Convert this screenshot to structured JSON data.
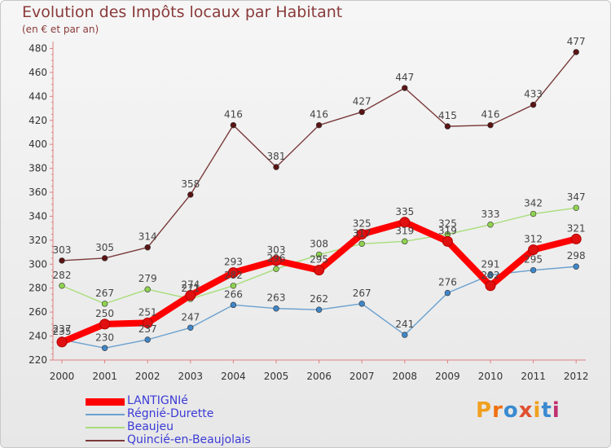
{
  "title": "Evolution des Impôts locaux par Habitant",
  "subtitle": "(en € et par an)",
  "brand": "Proxiti",
  "chart_data": {
    "type": "line",
    "title": "Evolution des Impôts locaux par Habitant",
    "ylabel": "(en € et par an)",
    "xlabel": "",
    "x": [
      "2000",
      "2001",
      "2002",
      "2003",
      "2004",
      "2005",
      "2006",
      "2007",
      "2008",
      "2009",
      "2010",
      "2011",
      "2012"
    ],
    "ylim": [
      220,
      480
    ],
    "yticks": [
      220,
      240,
      260,
      280,
      300,
      320,
      340,
      360,
      380,
      400,
      420,
      440,
      460,
      480
    ],
    "grid": false,
    "legend": "bottom-left",
    "series": [
      {
        "name": "LANTIGNIé",
        "color": "#ff0000",
        "marker": "#e01010",
        "values": [
          235,
          250,
          251,
          274,
          293,
          303,
          295,
          325,
          335,
          319,
          282,
          312,
          321
        ]
      },
      {
        "name": "Régnié-Durette",
        "color": "#6aa0cf",
        "marker": "#3f86c8",
        "values": [
          237,
          230,
          237,
          247,
          266,
          263,
          262,
          267,
          241,
          276,
          291,
          295,
          298
        ]
      },
      {
        "name": "Beaujeu",
        "color": "#a8dd7a",
        "marker": "#8fd250",
        "values": [
          282,
          267,
          279,
          271,
          282,
          296,
          308,
          317,
          319,
          325,
          333,
          342,
          347
        ]
      },
      {
        "name": "Quincié-en-Beaujolais",
        "color": "#7a3a3a",
        "marker": "#5a1414",
        "values": [
          303,
          305,
          314,
          358,
          416,
          381,
          416,
          427,
          447,
          415,
          416,
          433,
          477
        ]
      }
    ]
  }
}
